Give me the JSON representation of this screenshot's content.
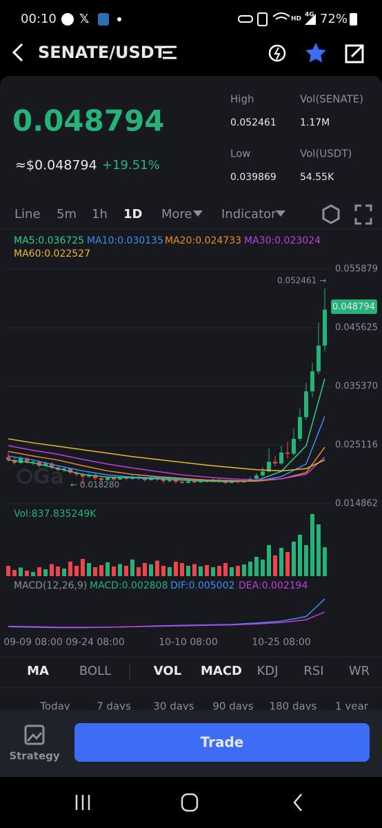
{
  "status_bar": {
    "time": "00:10",
    "hd": "HD",
    "network": "4G",
    "battery": "72%"
  },
  "header": {
    "pair": "SENATE/USDT"
  },
  "ticker": {
    "last_price": "0.048794",
    "usd_price": "≈$0.048794",
    "change": "+19.51%",
    "high_label": "High",
    "high": "0.052461",
    "vol_base_label": "Vol(SENATE)",
    "vol_base": "1.17M",
    "low_label": "Low",
    "low": "0.039869",
    "vol_quote_label": "Vol(USDT)",
    "vol_quote": "54.55K"
  },
  "interval_tabs": [
    "Line",
    "5m",
    "1h",
    "1D",
    "More",
    "Indicator"
  ],
  "chart_data": {
    "type": "candlestick",
    "up_color": "#25b37a",
    "down_color": "#ef454a",
    "ylim": [
      0.014862,
      0.055879
    ],
    "yticks": [
      0.055879,
      0.045625,
      {
        "value": 0.03537,
        "label": "0.035370"
      },
      0.025116,
      0.014862
    ],
    "last_tag": "0.048794",
    "high_marker": "0.052461 →",
    "low_marker": "← 0.018280",
    "categories": [
      null,
      null,
      null,
      null,
      "09-09 08:00",
      null,
      null,
      null,
      null,
      null,
      null,
      null,
      null,
      null,
      "09-24 08:00",
      null,
      null,
      null,
      null,
      null,
      null,
      null,
      null,
      null,
      null,
      null,
      null,
      null,
      null,
      "10-10 08:00",
      null,
      null,
      null,
      null,
      null,
      null,
      null,
      null,
      null,
      null,
      null,
      null,
      null,
      null,
      "10-25 08:00",
      null,
      null,
      null,
      null,
      null,
      null,
      null
    ],
    "ohlc": [
      [
        0.023,
        0.0238,
        0.0222,
        0.0225
      ],
      [
        0.0225,
        0.0231,
        0.0217,
        0.022
      ],
      [
        0.022,
        0.0232,
        0.0218,
        0.0228
      ],
      [
        0.0228,
        0.023,
        0.0219,
        0.0221
      ],
      [
        0.0221,
        0.0226,
        0.0216,
        0.0222
      ],
      [
        0.0222,
        0.0224,
        0.0212,
        0.0215
      ],
      [
        0.0215,
        0.0222,
        0.0213,
        0.0219
      ],
      [
        0.0219,
        0.0221,
        0.0209,
        0.0212
      ],
      [
        0.0212,
        0.0215,
        0.0205,
        0.0208
      ],
      [
        0.0208,
        0.0213,
        0.0204,
        0.021
      ],
      [
        0.021,
        0.0211,
        0.02,
        0.0203
      ],
      [
        0.0203,
        0.0206,
        0.0197,
        0.02
      ],
      [
        0.02,
        0.0202,
        0.01828,
        0.0196
      ],
      [
        0.0196,
        0.0202,
        0.0194,
        0.0199
      ],
      [
        0.0199,
        0.0201,
        0.019,
        0.0193
      ],
      [
        0.0193,
        0.0195,
        0.0187,
        0.019
      ],
      [
        0.019,
        0.0197,
        0.0189,
        0.0194
      ],
      [
        0.0194,
        0.0196,
        0.0188,
        0.0191
      ],
      [
        0.0191,
        0.0198,
        0.019,
        0.0195
      ],
      [
        0.0195,
        0.0197,
        0.0189,
        0.0192
      ],
      [
        0.0192,
        0.0199,
        0.0191,
        0.0196
      ],
      [
        0.0196,
        0.0198,
        0.019,
        0.0193
      ],
      [
        0.0193,
        0.0195,
        0.0187,
        0.019
      ],
      [
        0.019,
        0.0197,
        0.0189,
        0.0194
      ],
      [
        0.0194,
        0.0196,
        0.0188,
        0.0191
      ],
      [
        0.0191,
        0.0193,
        0.0185,
        0.0188
      ],
      [
        0.0188,
        0.0193,
        0.0186,
        0.019
      ],
      [
        0.019,
        0.0192,
        0.0184,
        0.0187
      ],
      [
        0.0187,
        0.0189,
        0.0183,
        0.0185
      ],
      [
        0.0185,
        0.0191,
        0.0184,
        0.0188
      ],
      [
        0.0188,
        0.019,
        0.0184,
        0.0186
      ],
      [
        0.0186,
        0.0192,
        0.0185,
        0.0189
      ],
      [
        0.0189,
        0.0191,
        0.0185,
        0.0187
      ],
      [
        0.0187,
        0.0193,
        0.0186,
        0.019
      ],
      [
        0.019,
        0.0192,
        0.0185,
        0.0187
      ],
      [
        0.0187,
        0.0189,
        0.0183,
        0.0185
      ],
      [
        0.0185,
        0.019,
        0.0184,
        0.0188
      ],
      [
        0.0188,
        0.019,
        0.0184,
        0.0186
      ],
      [
        0.0186,
        0.0192,
        0.0185,
        0.0189
      ],
      [
        0.0189,
        0.0196,
        0.0188,
        0.0192
      ],
      [
        0.0192,
        0.0202,
        0.019,
        0.0198
      ],
      [
        0.0198,
        0.0212,
        0.0196,
        0.0205
      ],
      [
        0.0205,
        0.0245,
        0.0203,
        0.0222
      ],
      [
        0.0222,
        0.0232,
        0.0214,
        0.0219
      ],
      [
        0.0219,
        0.025,
        0.0217,
        0.0238
      ],
      [
        0.0238,
        0.0258,
        0.0228,
        0.0236
      ],
      [
        0.0236,
        0.028,
        0.0233,
        0.0262
      ],
      [
        0.0262,
        0.0315,
        0.0258,
        0.03
      ],
      [
        0.03,
        0.036,
        0.0295,
        0.0345
      ],
      [
        0.0345,
        0.0395,
        0.0335,
        0.038
      ],
      [
        0.038,
        0.0465,
        0.0375,
        0.0425
      ],
      [
        0.0425,
        0.052461,
        0.0415,
        0.048794
      ]
    ],
    "ma_x": [
      0,
      4,
      8,
      12,
      16,
      20,
      24,
      28,
      32,
      36,
      40,
      44,
      48,
      51
    ],
    "ma_series": [
      {
        "legend": "MA5:0.036725",
        "color": "#2bd18f",
        "values": [
          0.0225,
          0.022,
          0.021,
          0.02,
          0.0195,
          0.0194,
          0.0192,
          0.019,
          0.0188,
          0.0187,
          0.0189,
          0.0205,
          0.025,
          0.036725
        ]
      },
      {
        "legend": "MA10:0.030135",
        "color": "#3a8ff5",
        "values": [
          0.0232,
          0.0225,
          0.0215,
          0.0206,
          0.0199,
          0.0195,
          0.0194,
          0.0192,
          0.019,
          0.0188,
          0.0188,
          0.0196,
          0.0218,
          0.030135
        ]
      },
      {
        "legend": "MA20:0.024733",
        "color": "#f08a24",
        "values": [
          0.024,
          0.0232,
          0.0225,
          0.0215,
          0.0206,
          0.02,
          0.0196,
          0.0193,
          0.019,
          0.0189,
          0.0188,
          0.0192,
          0.0203,
          0.024733
        ]
      },
      {
        "legend": "MA30:0.023024",
        "color": "#c23ee0",
        "values": [
          0.025,
          0.0242,
          0.0235,
          0.0226,
          0.0218,
          0.0211,
          0.0205,
          0.0199,
          0.0195,
          0.0192,
          0.019,
          0.0192,
          0.02,
          0.023024
        ]
      },
      {
        "legend": "MA60:0.022527",
        "color": "#e8b931",
        "values": [
          0.0262,
          0.0255,
          0.0249,
          0.0243,
          0.0237,
          0.0231,
          0.0226,
          0.0221,
          0.0216,
          0.0212,
          0.0208,
          0.0206,
          0.021,
          0.022527
        ]
      }
    ],
    "volume": {
      "label": "Vol:837.835249K",
      "ylim": [
        0,
        2000
      ],
      "values": [
        300,
        180,
        250,
        160,
        120,
        260,
        200,
        350,
        280,
        220,
        420,
        300,
        500,
        380,
        260,
        320,
        400,
        280,
        350,
        300,
        480,
        260,
        380,
        340,
        450,
        300,
        260,
        420,
        380,
        300,
        350,
        280,
        320,
        260,
        300,
        380,
        260,
        300,
        340,
        420,
        560,
        480,
        900,
        600,
        820,
        700,
        1000,
        1200,
        900,
        1800,
        1500,
        837.835249
      ]
    },
    "macd": {
      "legend": [
        "MACD(12,26,9)",
        "MACD:0.002808",
        "DIF:0.005002",
        "DEA:0.002194"
      ],
      "ylim": [
        -0.002,
        0.0065
      ],
      "dif": {
        "color": "#3a8ff5",
        "values": [
          -0.001,
          -0.0011,
          -0.0012,
          -0.0012,
          -0.0011,
          -0.001,
          -0.0008,
          -0.0007,
          -0.0006,
          -0.0005,
          -0.0002,
          0.0002,
          0.0012,
          0.005002
        ]
      },
      "dea": {
        "color": "#c23ee0",
        "values": [
          -0.0009,
          -0.001,
          -0.0011,
          -0.0011,
          -0.0011,
          -0.001,
          -0.0009,
          -0.0008,
          -0.0007,
          -0.0006,
          -0.0004,
          -0.0001,
          0.0005,
          0.002194
        ]
      }
    }
  },
  "indicator_tabs": [
    "MA",
    "BOLL",
    "VOL",
    "MACD",
    "KDJ",
    "RSI",
    "WR"
  ],
  "range_tabs": [
    "Today",
    "7 days",
    "30 days",
    "90 days",
    "180 days",
    "1 year"
  ],
  "footer": {
    "strategy": "Strategy",
    "trade": "Trade"
  }
}
